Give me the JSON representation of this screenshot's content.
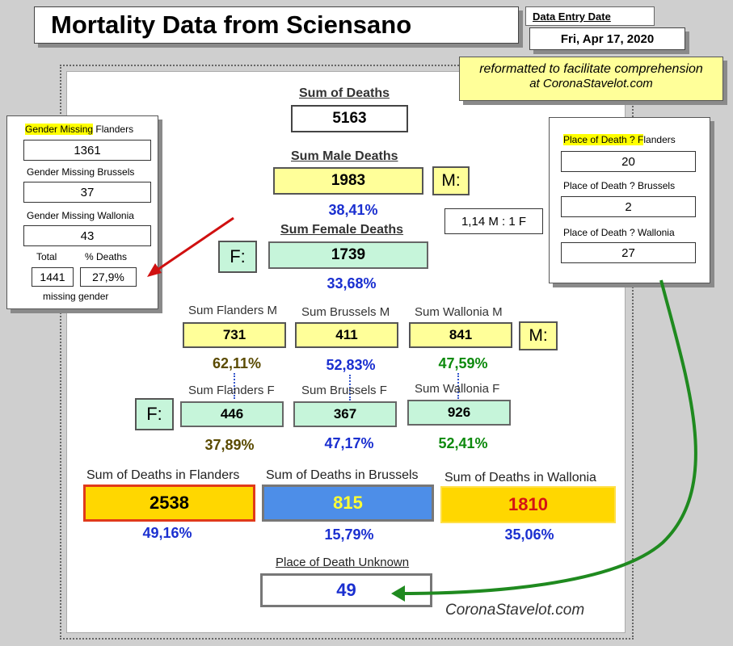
{
  "title": "Mortality Data from Sciensano",
  "entry_date": {
    "label": "Data Entry Date",
    "value": "Fri, Apr 17, 2020"
  },
  "note": {
    "line1": "reformatted to facilitate comprehension",
    "line2": "at CoronaStavelot.com"
  },
  "sum_deaths": {
    "label": "Sum of Deaths",
    "value": "5163"
  },
  "male": {
    "label": "Sum Male Deaths",
    "value": "1983",
    "pct": "38,41%",
    "tag": "M:",
    "ratio": "1,14 M : 1 F"
  },
  "female": {
    "label": "Sum Female Deaths",
    "value": "1739",
    "pct": "33,68%",
    "tag": "F:"
  },
  "gender_missing": {
    "flanders_label_hl": "Gender Missing",
    "flanders_label_rest": " Flanders",
    "flanders": "1361",
    "brussels_label": "Gender Missing Brussels",
    "brussels": "37",
    "wallonia_label": "Gender Missing Wallonia",
    "wallonia": "43",
    "total_label": "Total",
    "total": "1441",
    "pct_label": "% Deaths",
    "pct": "27,9%",
    "footer": "missing gender"
  },
  "place_unknown_regional": {
    "flanders_label_hl": "Place of Death ? F",
    "flanders_label_rest": "landers",
    "flanders": "20",
    "brussels_label": "Place of Death ? Brussels",
    "brussels": "2",
    "wallonia_label": "Place of Death ? Wallonia",
    "wallonia": "27"
  },
  "regional_male": {
    "tag": "M:",
    "flanders": {
      "label": "Sum Flanders M",
      "value": "731",
      "pct": "62,11%"
    },
    "brussels": {
      "label": "Sum Brussels M",
      "value": "411",
      "pct": "52,83%"
    },
    "wallonia": {
      "label": "Sum Wallonia M",
      "value": "841",
      "pct": "47,59%"
    }
  },
  "regional_female": {
    "tag": "F:",
    "flanders": {
      "label": "Sum Flanders F",
      "value": "446",
      "pct": "37,89%"
    },
    "brussels": {
      "label": "Sum Brussels F",
      "value": "367",
      "pct": "47,17%"
    },
    "wallonia": {
      "label": "Sum Wallonia F",
      "value": "926",
      "pct": "52,41%"
    }
  },
  "regions": {
    "flanders": {
      "label": "Sum of Deaths in Flanders",
      "value": "2538",
      "pct": "49,16%"
    },
    "brussels": {
      "label": "Sum of Deaths in Brussels",
      "value": "815",
      "pct": "15,79%"
    },
    "wallonia": {
      "label": "Sum of Deaths in Wallonia",
      "value": "1810",
      "pct": "35,06%"
    }
  },
  "place_unknown": {
    "label": "Place of Death Unknown",
    "value": "49"
  },
  "watermark": "CoronaStavelot.com",
  "colors": {
    "yellow": "#ffff99",
    "mint": "#c6f5da",
    "gold": "#ffd700",
    "blue_fill": "#4d8ee8",
    "arrow_red": "#d01010",
    "arrow_green": "#1f8a1f"
  }
}
